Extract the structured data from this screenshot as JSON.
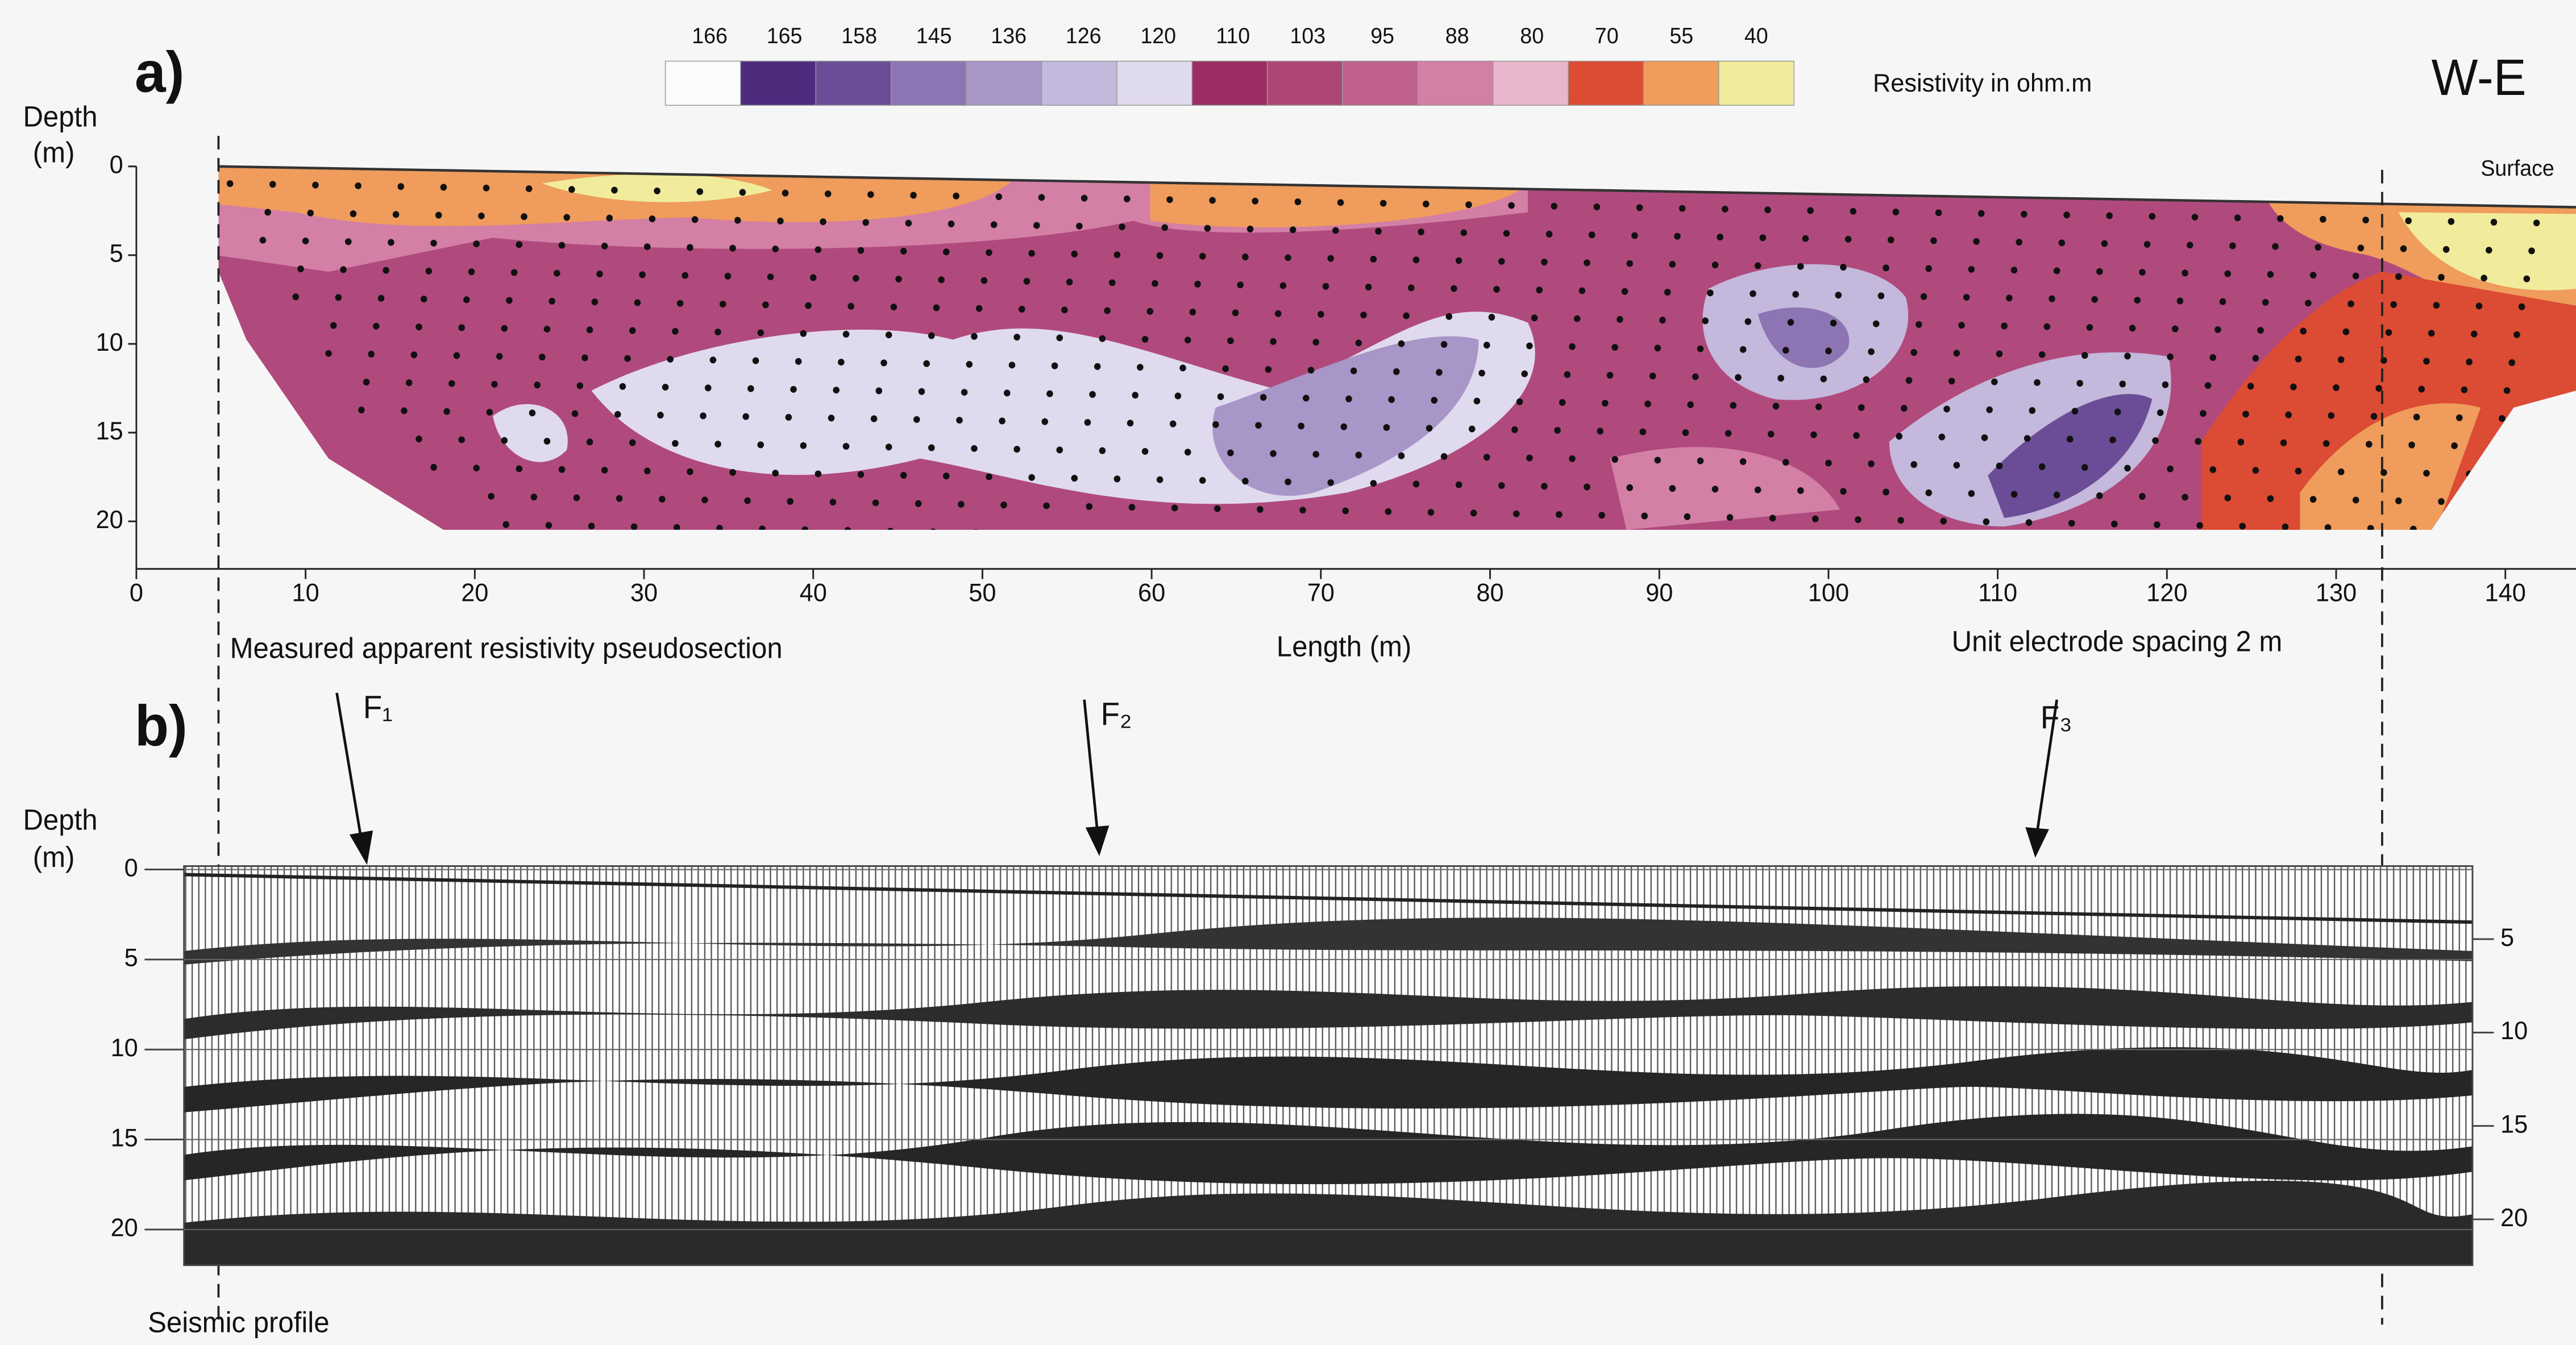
{
  "panel_a": {
    "label": "a)",
    "direction": "W-E",
    "colorbar": {
      "ticks": [
        166,
        165,
        158,
        145,
        136,
        126,
        120,
        110,
        103,
        95,
        88,
        80,
        70,
        55,
        40
      ],
      "colors": [
        "#fbfafd",
        "#4d2c7e",
        "#6b4d97",
        "#8d75b3",
        "#a896c8",
        "#c4b8dc",
        "#e0daee",
        "#9b2d63",
        "#ad4677",
        "#c0608c",
        "#d37fa6",
        "#e9b6cd",
        "#dc4b33",
        "#ef9c5c",
        "#f1ec9c"
      ],
      "label": "Resistivity in ohm.m"
    },
    "depth_label": [
      "Depth",
      "(m)"
    ],
    "yticks": [
      0,
      5,
      10,
      15,
      20
    ],
    "xticks": [
      0,
      10,
      20,
      30,
      40,
      50,
      60,
      70,
      80,
      90,
      100,
      110,
      120,
      130,
      140
    ],
    "xlabel": "Length (m)",
    "caption": "Measured apparent resistivity pseudosection",
    "spacing": "Unit electrode spacing 2 m",
    "surface": "Surface"
  },
  "panel_b": {
    "label": "b)",
    "faults": [
      "F₁",
      "F₂",
      "F₃"
    ],
    "depth_label": [
      "Depth",
      "(m)"
    ],
    "yticks": [
      0,
      5,
      10,
      15,
      20
    ],
    "yticks_right": [
      5,
      10,
      15,
      20
    ],
    "caption": "Seismic profile"
  }
}
